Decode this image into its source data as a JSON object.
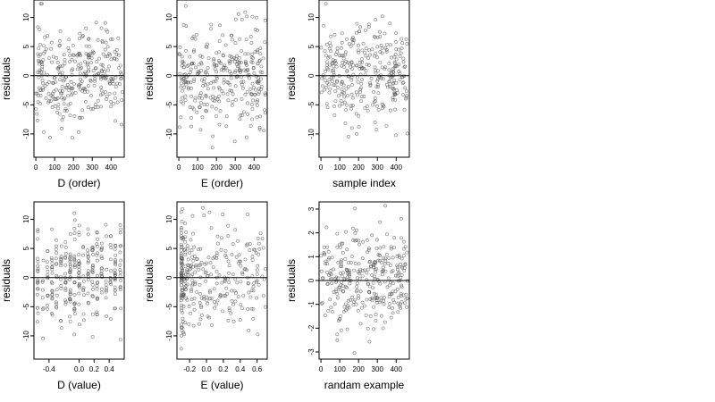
{
  "chart_data": [
    {
      "type": "scatter",
      "title": "",
      "xlabel": "D (order)",
      "ylabel": "residuals",
      "xlim": [
        -10,
        470
      ],
      "ylim": [
        -14,
        13
      ],
      "xticks": [
        "0",
        "100",
        "200",
        "300",
        "400"
      ],
      "yticks": [
        "-10",
        "-5",
        "0",
        "5",
        "10"
      ],
      "hline": 0,
      "pattern": "uniform-x",
      "n_points": 320,
      "x_range": [
        0,
        460
      ],
      "y_sd": 4.2,
      "seed": 11
    },
    {
      "type": "scatter",
      "title": "",
      "xlabel": "E (order)",
      "ylabel": "residuals",
      "xlim": [
        -10,
        470
      ],
      "ylim": [
        -14,
        13
      ],
      "xticks": [
        "0",
        "100",
        "200",
        "300",
        "400"
      ],
      "yticks": [
        "-10",
        "-5",
        "0",
        "5",
        "10"
      ],
      "hline": 0,
      "pattern": "uniform-x",
      "n_points": 320,
      "x_range": [
        0,
        460
      ],
      "y_sd": 4.2,
      "seed": 23
    },
    {
      "type": "scatter",
      "title": "",
      "xlabel": "sample index",
      "ylabel": "residuals",
      "xlim": [
        -10,
        470
      ],
      "ylim": [
        -14,
        13
      ],
      "xticks": [
        "0",
        "100",
        "200",
        "300",
        "400"
      ],
      "yticks": [
        "-10",
        "-5",
        "0",
        "5",
        "10"
      ],
      "hline": 0,
      "pattern": "uniform-x",
      "n_points": 320,
      "x_range": [
        0,
        460
      ],
      "y_sd": 4.2,
      "seed": 37
    },
    {
      "type": "scatter",
      "title": "",
      "xlabel": "D (value)",
      "ylabel": "residuals",
      "xlim": [
        -0.6,
        0.6
      ],
      "ylim": [
        -14,
        13
      ],
      "xticks": [
        "-0.4",
        "0.0",
        "0.2",
        "0.4"
      ],
      "ytick_values": [
        -10,
        -5,
        0,
        5,
        10
      ],
      "yticks": [
        "-10",
        "-5",
        "0",
        "5",
        "10"
      ],
      "xtick_values": [
        -0.4,
        0.0,
        0.2,
        0.4
      ],
      "hline": 0,
      "pattern": "column-x",
      "column_x": [
        -0.55,
        -0.48,
        -0.42,
        -0.36,
        -0.3,
        -0.24,
        -0.18,
        -0.12,
        -0.06,
        0.0,
        0.06,
        0.12,
        0.18,
        0.24,
        0.3,
        0.36,
        0.42,
        0.48,
        0.55
      ],
      "n_points": 320,
      "y_sd": 4.2,
      "seed": 51
    },
    {
      "type": "scatter",
      "title": "",
      "xlabel": "E (value)",
      "ylabel": "residuals",
      "xlim": [
        -0.35,
        0.72
      ],
      "ylim": [
        -14,
        13
      ],
      "xtick_values": [
        -0.2,
        0.0,
        0.2,
        0.4,
        0.6
      ],
      "xticks": [
        "-0.2",
        "0.0",
        "0.2",
        "0.4",
        "0.6"
      ],
      "yticks": [
        "-10",
        "-5",
        "0",
        "5",
        "10"
      ],
      "hline": 0,
      "pattern": "skewed-x",
      "x_range": [
        -0.3,
        0.7
      ],
      "n_points": 320,
      "y_sd": 4.2,
      "seed": 67
    },
    {
      "type": "scatter",
      "title": "",
      "xlabel": "randam example",
      "ylabel": "residuals",
      "xlim": [
        -10,
        470
      ],
      "ylim": [
        -3.3,
        3.3
      ],
      "xticks": [
        "0",
        "100",
        "200",
        "300",
        "400"
      ],
      "yticks": [
        "-3",
        "-2",
        "-1",
        "0",
        "1",
        "2",
        "3"
      ],
      "hline": 0,
      "pattern": "uniform-x",
      "n_points": 320,
      "x_range": [
        0,
        460
      ],
      "y_sd": 1.0,
      "seed": 89
    }
  ],
  "colors": {
    "point": "#555555",
    "axis": "#000000",
    "refline": "#000000",
    "background": "#ffffff"
  }
}
